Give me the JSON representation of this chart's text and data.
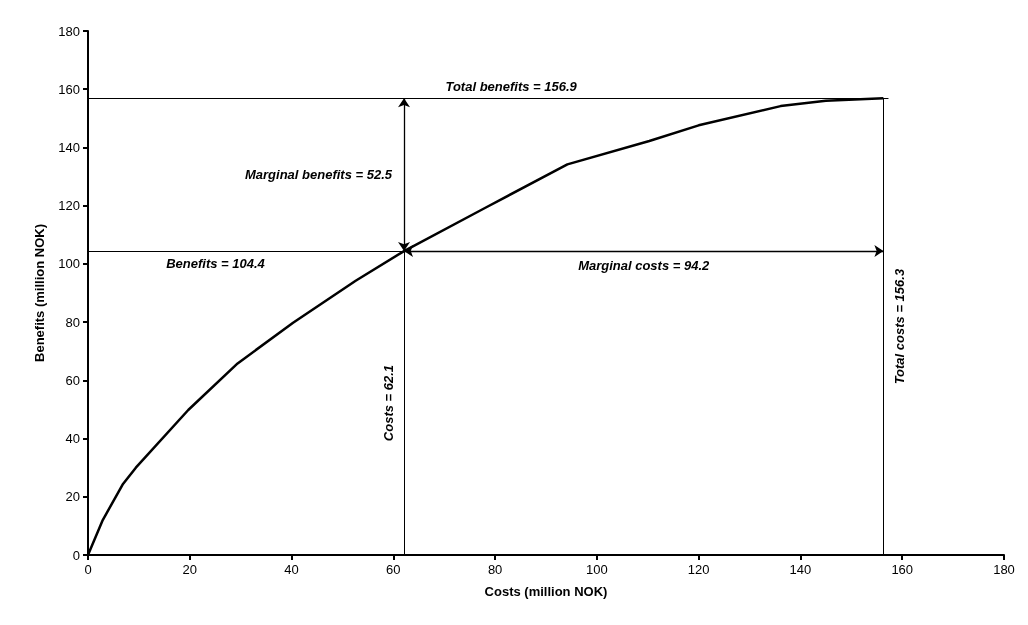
{
  "chart_data": {
    "type": "line",
    "xlabel": "Costs (million NOK)",
    "ylabel": "Benefits (million NOK)",
    "xlim": [
      0,
      180
    ],
    "xticks": [
      0,
      20,
      40,
      60,
      80,
      100,
      120,
      140,
      160,
      180
    ],
    "ylim": [
      0,
      180
    ],
    "yticks": [
      0,
      20,
      40,
      60,
      80,
      100,
      120,
      140,
      160,
      180
    ],
    "grid": false,
    "marker": "none",
    "line_style": "solid",
    "series": [
      {
        "color": "#000000",
        "x": [
          0,
          2.9,
          6.8,
          9.4,
          19.7,
          29.4,
          40.3,
          52.6,
          62.1,
          78,
          94.2,
          110.3,
          120,
          136.1,
          145,
          156.3
        ],
        "values": [
          0,
          12,
          24.2,
          30,
          49.8,
          65.8,
          79.8,
          94.2,
          104.4,
          119.2,
          134.2,
          142.2,
          147.6,
          154.2,
          156,
          156.9
        ]
      }
    ],
    "ref_lines": [
      {
        "axis": "x",
        "value": 62.1,
        "label": "Costs = 62.1"
      },
      {
        "axis": "x",
        "value": 156.3,
        "label": "Total costs = 156.3"
      },
      {
        "axis": "y",
        "value": 104.4,
        "label": "Benefits = 104.4"
      },
      {
        "axis": "y",
        "value": 156.9,
        "label": "Total benefits = 156.9"
      }
    ],
    "annotations": [
      "Marginal benefits = 52.5",
      "Marginal costs = 94.2"
    ]
  }
}
